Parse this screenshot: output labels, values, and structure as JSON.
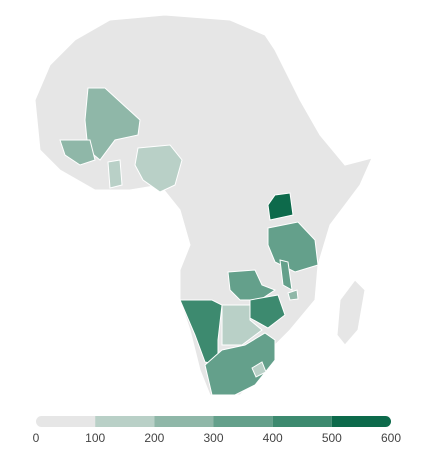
{
  "chart_data": {
    "type": "choropleth",
    "values": [
      250,
      250,
      150,
      150,
      550,
      350,
      350,
      350,
      250,
      450,
      450,
      150,
      350,
      150
    ],
    "colors": [
      "#e6e6e6",
      "#b9d0c7",
      "#8fb7a8",
      "#64a08b",
      "#3d8a6f",
      "#0d6a4b"
    ],
    "xlim": [
      0,
      600
    ],
    "xticks": [
      0,
      100,
      200,
      300,
      400,
      500,
      600
    ]
  }
}
